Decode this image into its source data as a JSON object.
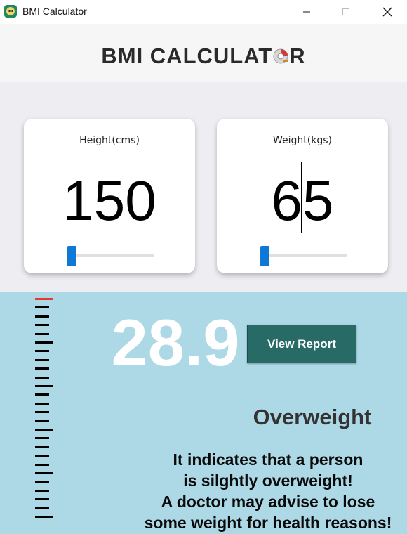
{
  "window": {
    "title": "BMI Calculator",
    "icons": {
      "app": "app-icon",
      "minimize": "minimize-icon",
      "maximize": "maximize-icon",
      "close": "close-icon"
    }
  },
  "header": {
    "title_pre": "BMI CALCULAT",
    "title_post": "R",
    "logo_icon": "tape-measure-icon"
  },
  "height_card": {
    "label": "Height(cms)",
    "value": "150",
    "slider_fraction": 0.0
  },
  "weight_card": {
    "label": "Weight(kgs)",
    "value": "65",
    "slider_fraction": 0.0
  },
  "result": {
    "bmi": "28.9",
    "button_label": "View Report",
    "category": "Overweight",
    "description": [
      "It indicates that a person",
      "is silghtly overweight!",
      "A doctor may advise to lose",
      "some weight for health reasons!"
    ]
  },
  "ruler": {
    "marker_color": "#e53935",
    "icon": "scale-ruler-icon"
  },
  "colors": {
    "accent": "#0f78d7",
    "button": "#276a66",
    "result_bg": "#add8e6",
    "bmi_text": "#ffffff"
  }
}
